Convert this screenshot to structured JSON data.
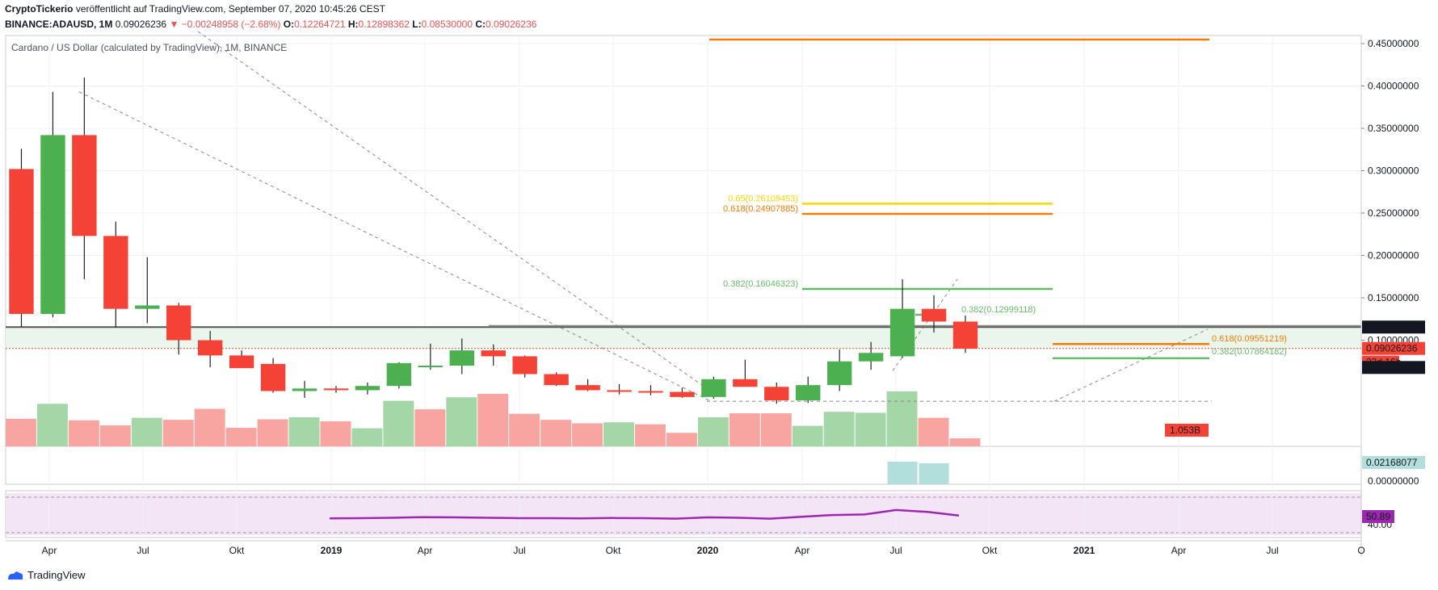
{
  "header": {
    "publisher": "CryptoTickerio",
    "published_text": "veröffentlicht auf TradingView.com, September 07, 2020 10:45:26 CEST",
    "symbol": "BINANCE:ADAUSD, 1M",
    "last": "0.09026236",
    "change": "−0.00248958 (−2.68%)",
    "o_label": "O:",
    "o": "0.12264721",
    "h_label": "H:",
    "h": "0.12898362",
    "l_label": "L:",
    "l": "0.08530000",
    "c_label": "C:",
    "c": "0.09026236"
  },
  "chart_title": "Cardano / US Dollar (calculated by TradingView), 1M, BINANCE",
  "footer": {
    "brand": "TradingView"
  },
  "colors": {
    "up": "#4caf50",
    "down": "#f44336",
    "vol_up": "#a5d6a7",
    "vol_down": "#f8a4a0",
    "fib_green": "#66bb6a",
    "fib_orange": "#f57c00",
    "fib_yellow": "#ffd600",
    "rsi": "#9c27b0",
    "rsi_band": "#f3e5f5",
    "zone": "#e8f5e9",
    "grid": "#eef0f3"
  },
  "chart_data": {
    "type": "candlestick",
    "title": "Cardano / US Dollar (calculated by TradingView), 1M, BINANCE",
    "y_scale": "linear",
    "ylim": [
      0.05,
      0.46
    ],
    "y_ticks": [
      "0.45000000",
      "0.40000000",
      "0.35000000",
      "0.30000000",
      "0.25000000",
      "0.20000000",
      "0.15000000",
      "0.10000000"
    ],
    "x_ticks": [
      "Apr",
      "Jul",
      "Okt",
      "2019",
      "Apr",
      "Jul",
      "Okt",
      "2020",
      "Apr",
      "Jul",
      "Okt",
      "2021",
      "Apr",
      "Jul",
      "O"
    ],
    "candles": [
      {
        "o": 0.302,
        "h": 0.326,
        "l": 0.116,
        "c": 0.131
      },
      {
        "o": 0.131,
        "h": 0.393,
        "l": 0.127,
        "c": 0.342
      },
      {
        "o": 0.342,
        "h": 0.41,
        "l": 0.172,
        "c": 0.223
      },
      {
        "o": 0.223,
        "h": 0.24,
        "l": 0.115,
        "c": 0.137
      },
      {
        "o": 0.137,
        "h": 0.198,
        "l": 0.12,
        "c": 0.141
      },
      {
        "o": 0.141,
        "h": 0.144,
        "l": 0.083,
        "c": 0.1
      },
      {
        "o": 0.1,
        "h": 0.111,
        "l": 0.068,
        "c": 0.082
      },
      {
        "o": 0.082,
        "h": 0.088,
        "l": 0.068,
        "c": 0.067
      },
      {
        "o": 0.072,
        "h": 0.079,
        "l": 0.038,
        "c": 0.04
      },
      {
        "o": 0.04,
        "h": 0.052,
        "l": 0.032,
        "c": 0.043
      },
      {
        "o": 0.043,
        "h": 0.046,
        "l": 0.038,
        "c": 0.041
      },
      {
        "o": 0.041,
        "h": 0.05,
        "l": 0.036,
        "c": 0.046
      },
      {
        "o": 0.046,
        "h": 0.074,
        "l": 0.043,
        "c": 0.073
      },
      {
        "o": 0.07,
        "h": 0.096,
        "l": 0.065,
        "c": 0.07
      },
      {
        "o": 0.07,
        "h": 0.102,
        "l": 0.06,
        "c": 0.088
      },
      {
        "o": 0.088,
        "h": 0.095,
        "l": 0.07,
        "c": 0.081
      },
      {
        "o": 0.081,
        "h": 0.082,
        "l": 0.056,
        "c": 0.06
      },
      {
        "o": 0.06,
        "h": 0.062,
        "l": 0.046,
        "c": 0.047
      },
      {
        "o": 0.047,
        "h": 0.054,
        "l": 0.04,
        "c": 0.041
      },
      {
        "o": 0.041,
        "h": 0.048,
        "l": 0.036,
        "c": 0.04
      },
      {
        "o": 0.04,
        "h": 0.047,
        "l": 0.035,
        "c": 0.039
      },
      {
        "o": 0.039,
        "h": 0.044,
        "l": 0.032,
        "c": 0.033
      },
      {
        "o": 0.033,
        "h": 0.057,
        "l": 0.031,
        "c": 0.054
      },
      {
        "o": 0.054,
        "h": 0.077,
        "l": 0.047,
        "c": 0.045
      },
      {
        "o": 0.045,
        "h": 0.05,
        "l": 0.025,
        "c": 0.029
      },
      {
        "o": 0.029,
        "h": 0.057,
        "l": 0.026,
        "c": 0.047
      },
      {
        "o": 0.047,
        "h": 0.089,
        "l": 0.04,
        "c": 0.075
      },
      {
        "o": 0.075,
        "h": 0.098,
        "l": 0.065,
        "c": 0.085
      },
      {
        "o": 0.081,
        "h": 0.172,
        "l": 0.079,
        "c": 0.137
      },
      {
        "o": 0.137,
        "h": 0.153,
        "l": 0.109,
        "c": 0.122
      },
      {
        "o": 0.122,
        "h": 0.129,
        "l": 0.085,
        "c": 0.09
      }
    ],
    "volume_bars": [
      {
        "v": 0.55,
        "up": false
      },
      {
        "v": 0.85,
        "up": true
      },
      {
        "v": 0.52,
        "up": false
      },
      {
        "v": 0.42,
        "up": false
      },
      {
        "v": 0.57,
        "up": true
      },
      {
        "v": 0.53,
        "up": false
      },
      {
        "v": 0.75,
        "up": false
      },
      {
        "v": 0.37,
        "up": false
      },
      {
        "v": 0.54,
        "up": false
      },
      {
        "v": 0.58,
        "up": true
      },
      {
        "v": 0.5,
        "up": false
      },
      {
        "v": 0.36,
        "up": true
      },
      {
        "v": 0.91,
        "up": true
      },
      {
        "v": 0.74,
        "up": false
      },
      {
        "v": 0.98,
        "up": true
      },
      {
        "v": 1.05,
        "up": false
      },
      {
        "v": 0.65,
        "up": false
      },
      {
        "v": 0.53,
        "up": false
      },
      {
        "v": 0.46,
        "up": false
      },
      {
        "v": 0.48,
        "up": true
      },
      {
        "v": 0.44,
        "up": false
      },
      {
        "v": 0.27,
        "up": false
      },
      {
        "v": 0.58,
        "up": true
      },
      {
        "v": 0.66,
        "up": false
      },
      {
        "v": 0.66,
        "up": false
      },
      {
        "v": 0.41,
        "up": true
      },
      {
        "v": 0.69,
        "up": true
      },
      {
        "v": 0.67,
        "up": true
      },
      {
        "v": 1.1,
        "up": true
      },
      {
        "v": 0.57,
        "up": false
      },
      {
        "v": 0.16,
        "up": false
      }
    ],
    "price_labels": {
      "resistance": "0.11548143",
      "last_price": "0.09026236",
      "countdown": "23d 16h",
      "support": "0.09019049",
      "volume": "1.053B",
      "macd": "0.02168077",
      "macd_zero": "0.00000000",
      "rsi": "50.89",
      "rsi_tick": "40.00"
    },
    "fib_levels": [
      {
        "label": "0.65(0.26109453)",
        "price": 0.26109453,
        "color": "yellow"
      },
      {
        "label": "0.618(0.24907885)",
        "price": 0.24907885,
        "color": "orange"
      },
      {
        "label": "0.382(0.16046323)",
        "price": 0.16046323,
        "color": "green"
      },
      {
        "label": "0.382(0.12999118)",
        "price": 0.12999118,
        "color": "green"
      },
      {
        "label": "0.618(0.09551219)",
        "price": 0.09551219,
        "color": "orange"
      },
      {
        "label": "0.382(0.07864182)",
        "price": 0.07864182,
        "color": "green"
      }
    ],
    "rsi_values": [
      49.5,
      49.6,
      49.8,
      50.1,
      50.0,
      49.8,
      49.6,
      49.6,
      49.5,
      49.7,
      49.6,
      49.4,
      50.0,
      49.8,
      49.4,
      50.3,
      51.1,
      51.4,
      53.5,
      52.6,
      50.89
    ]
  }
}
